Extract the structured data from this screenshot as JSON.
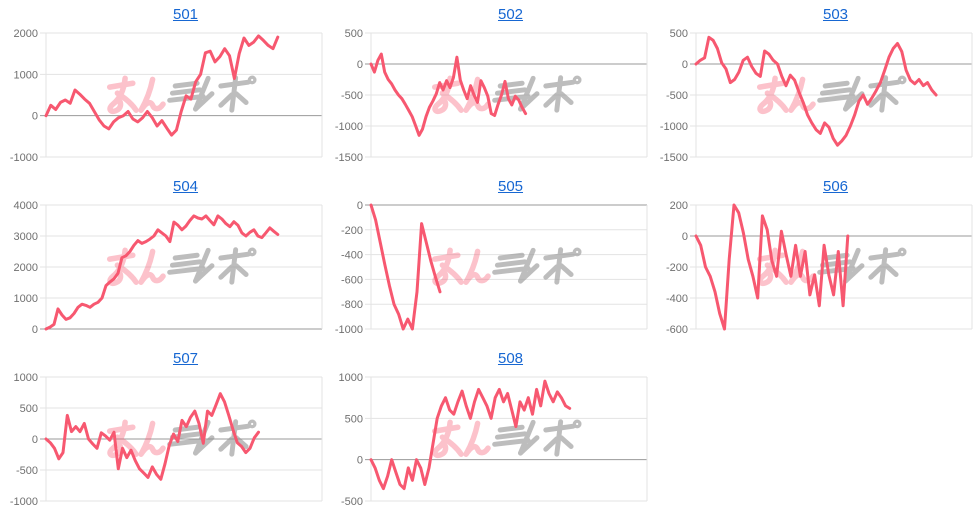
{
  "page": {
    "background": "#ffffff"
  },
  "style": {
    "line_color": "#f75870",
    "grid_color": "#e3e3e3",
    "zero_line_color": "#999999",
    "tick_label_color": "#707070",
    "title_link_color": "#1767d2",
    "watermark_pink": "#f75870",
    "watermark_gray": "#8f8f8f"
  },
  "watermark": {
    "label": "みんレポ",
    "icon": "minrepo-logo"
  },
  "chart_data": [
    {
      "type": "line",
      "title": "501",
      "xlabel": "",
      "ylabel": "",
      "ylim": [
        -1000,
        2000
      ],
      "yticks": [
        2000,
        1000,
        0,
        -1000
      ],
      "x_end_fraction": 0.84,
      "grid": true,
      "values": [
        0,
        250,
        150,
        320,
        380,
        300,
        620,
        520,
        400,
        300,
        100,
        -100,
        -250,
        -320,
        -150,
        -50,
        0,
        100,
        -80,
        -150,
        -50,
        100,
        -50,
        -250,
        -120,
        -300,
        -470,
        -350,
        100,
        480,
        400,
        820,
        1000,
        1520,
        1560,
        1300,
        1430,
        1620,
        1450,
        900,
        1500,
        1880,
        1700,
        1780,
        1930,
        1820,
        1700,
        1620,
        1900
      ]
    },
    {
      "type": "line",
      "title": "502",
      "xlabel": "",
      "ylabel": "",
      "ylim": [
        -1500,
        500
      ],
      "yticks": [
        500,
        0,
        -500,
        -1000,
        -1500
      ],
      "x_end_fraction": 0.56,
      "grid": true,
      "values": [
        0,
        -130,
        60,
        160,
        -130,
        -250,
        -320,
        -420,
        -500,
        -560,
        -650,
        -750,
        -850,
        -1000,
        -1150,
        -1050,
        -850,
        -700,
        -600,
        -480,
        -300,
        -420,
        -270,
        -380,
        -220,
        110,
        -260,
        -420,
        -560,
        -350,
        -500,
        -620,
        -270,
        -380,
        -520,
        -800,
        -830,
        -650,
        -500,
        -280,
        -560,
        -660,
        -520,
        -580,
        -700,
        -800
      ]
    },
    {
      "type": "line",
      "title": "503",
      "xlabel": "",
      "ylabel": "",
      "ylim": [
        -1500,
        500
      ],
      "yticks": [
        500,
        0,
        -500,
        -1000,
        -1500
      ],
      "x_end_fraction": 0.87,
      "grid": true,
      "values": [
        0,
        60,
        100,
        430,
        380,
        250,
        20,
        -80,
        -300,
        -250,
        -130,
        60,
        110,
        -40,
        -150,
        -200,
        210,
        160,
        60,
        0,
        -200,
        -350,
        -180,
        -260,
        -450,
        -620,
        -820,
        -950,
        -1060,
        -1120,
        -950,
        -1020,
        -1200,
        -1310,
        -1240,
        -1150,
        -1000,
        -820,
        -600,
        -500,
        -650,
        -550,
        -430,
        -300,
        -100,
        110,
        250,
        330,
        200,
        -100,
        -260,
        -320,
        -250,
        -350,
        -300,
        -420,
        -500
      ]
    },
    {
      "type": "line",
      "title": "504",
      "xlabel": "",
      "ylabel": "",
      "ylim": [
        0,
        4000
      ],
      "yticks": [
        4000,
        3000,
        2000,
        1000,
        0
      ],
      "x_end_fraction": 0.84,
      "grid": true,
      "values": [
        0,
        60,
        150,
        650,
        450,
        310,
        360,
        500,
        700,
        800,
        760,
        700,
        800,
        860,
        1000,
        1400,
        1520,
        1620,
        1800,
        2300,
        2360,
        2500,
        2700,
        2850,
        2760,
        2820,
        2900,
        3000,
        3200,
        3100,
        3000,
        2820,
        3450,
        3350,
        3200,
        3320,
        3500,
        3650,
        3580,
        3550,
        3650,
        3500,
        3360,
        3650,
        3550,
        3400,
        3300,
        3460,
        3350,
        3100,
        3000,
        3120,
        3200,
        3000,
        2950,
        3100,
        3260,
        3150,
        3050
      ]
    },
    {
      "type": "line",
      "title": "505",
      "xlabel": "",
      "ylabel": "",
      "ylim": [
        -1000,
        0
      ],
      "yticks": [
        0,
        -200,
        -400,
        -600,
        -800,
        -1000
      ],
      "x_end_fraction": 0.25,
      "grid": true,
      "values": [
        0,
        -120,
        -300,
        -480,
        -650,
        -800,
        -880,
        -1000,
        -920,
        -1000,
        -700,
        -150,
        -300,
        -450,
        -580,
        -700
      ]
    },
    {
      "type": "line",
      "title": "506",
      "xlabel": "",
      "ylabel": "",
      "ylim": [
        -600,
        200
      ],
      "yticks": [
        200,
        0,
        -200,
        -400,
        -600
      ],
      "x_end_fraction": 0.55,
      "grid": true,
      "values": [
        0,
        -60,
        -200,
        -260,
        -360,
        -500,
        -600,
        -150,
        200,
        150,
        20,
        -150,
        -260,
        -400,
        130,
        40,
        -160,
        -260,
        30,
        -120,
        -260,
        -60,
        -260,
        -100,
        -380,
        -250,
        -450,
        -60,
        -250,
        -380,
        -100,
        -450,
        0
      ]
    },
    {
      "type": "line",
      "title": "507",
      "xlabel": "",
      "ylabel": "",
      "ylim": [
        -1000,
        1000
      ],
      "yticks": [
        1000,
        500,
        0,
        -500,
        -1000
      ],
      "x_end_fraction": 0.77,
      "grid": true,
      "values": [
        0,
        -60,
        -150,
        -320,
        -220,
        380,
        120,
        200,
        120,
        250,
        0,
        -80,
        -150,
        100,
        50,
        -20,
        110,
        -480,
        -150,
        -300,
        -180,
        -350,
        -480,
        -550,
        -620,
        -450,
        -570,
        -650,
        -400,
        -100,
        80,
        -40,
        300,
        200,
        350,
        450,
        250,
        -70,
        450,
        380,
        550,
        730,
        600,
        380,
        150,
        -60,
        -120,
        -220,
        -150,
        20,
        110
      ]
    },
    {
      "type": "line",
      "title": "508",
      "xlabel": "",
      "ylabel": "",
      "ylim": [
        -500,
        1000
      ],
      "yticks": [
        1000,
        500,
        0,
        -500
      ],
      "x_end_fraction": 0.72,
      "grid": true,
      "values": [
        0,
        -100,
        -250,
        -350,
        -200,
        0,
        -150,
        -300,
        -350,
        -100,
        -250,
        0,
        -100,
        -300,
        -100,
        200,
        500,
        650,
        750,
        600,
        550,
        700,
        830,
        650,
        500,
        700,
        850,
        750,
        650,
        500,
        750,
        850,
        700,
        800,
        600,
        400,
        700,
        600,
        750,
        550,
        850,
        650,
        950,
        800,
        700,
        820,
        750,
        650,
        620
      ]
    }
  ]
}
